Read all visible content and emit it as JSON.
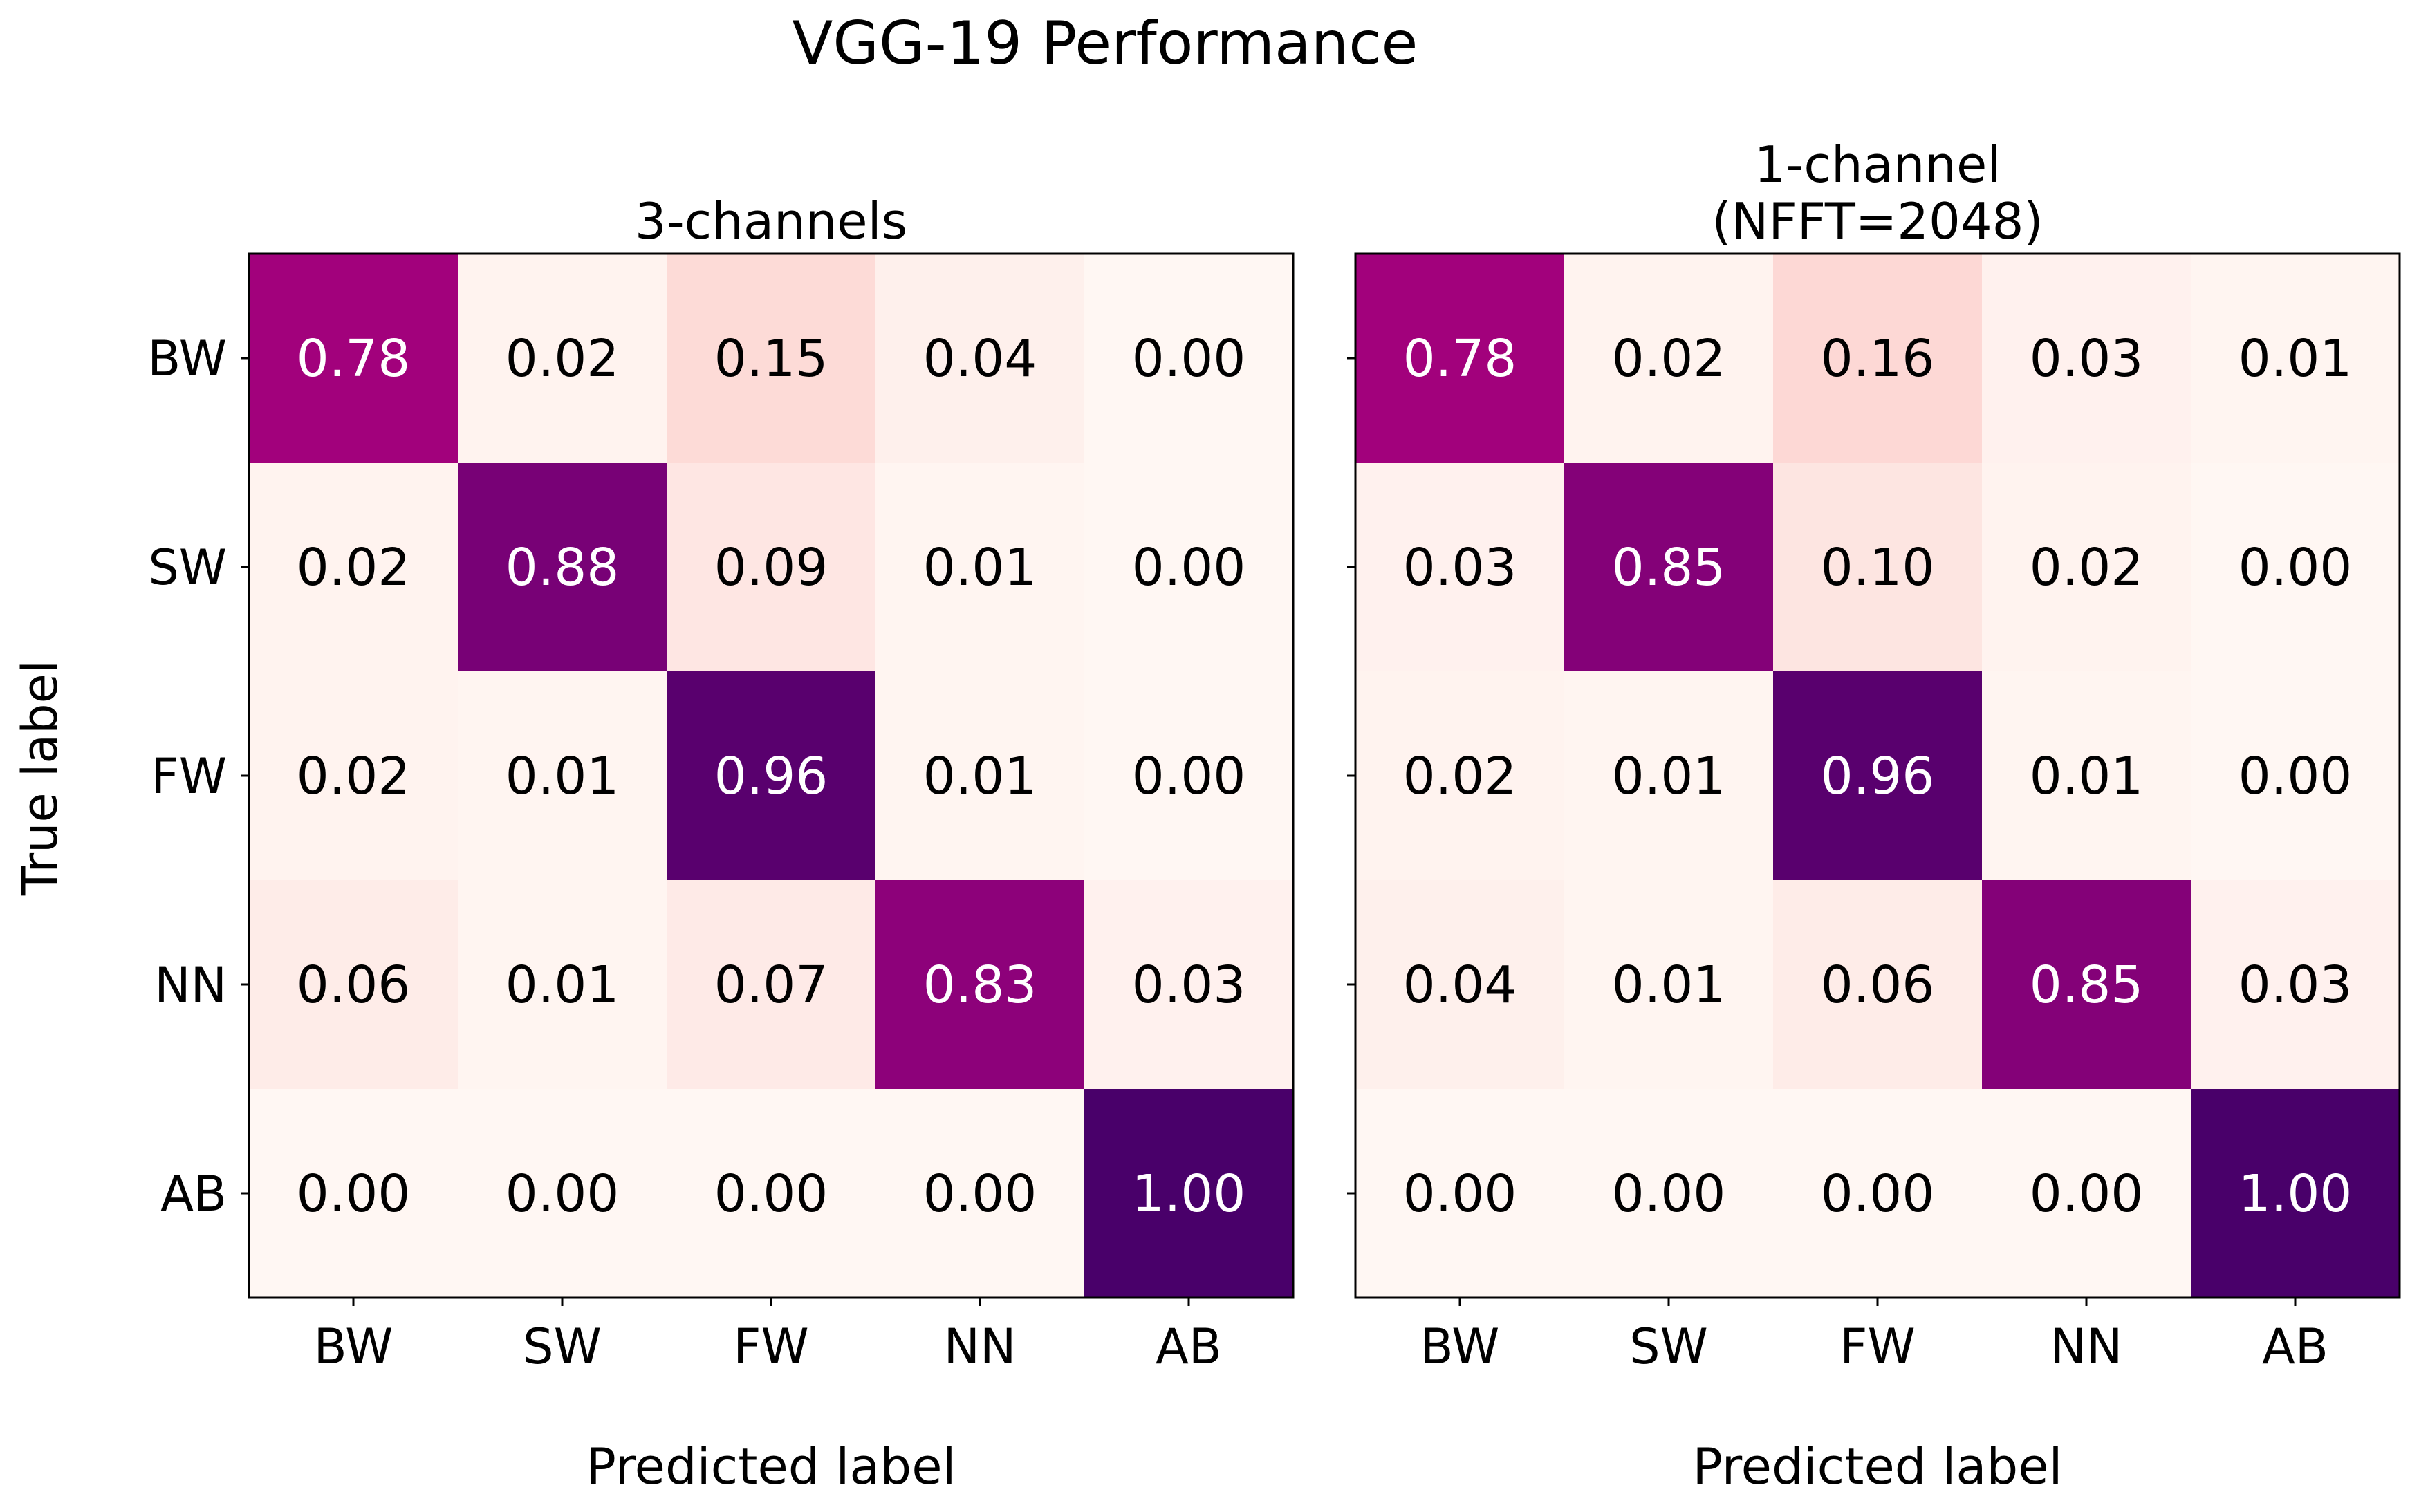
{
  "figure": {
    "title": "VGG-19 Performance",
    "ylabel": "True label"
  },
  "colormap": {
    "name": "RdPu",
    "stops": [
      "#fff7f3",
      "#fde0dd",
      "#fcc5c0",
      "#fa9fb5",
      "#f768a1",
      "#dd3497",
      "#ae017e",
      "#7a0177",
      "#49006a"
    ],
    "text_dark": "#000000",
    "text_light": "#ffffff"
  },
  "chart_data": [
    {
      "type": "heatmap",
      "title": "3-channels",
      "xlabel": "Predicted label",
      "ylabel": "True label",
      "x_categories": [
        "BW",
        "SW",
        "FW",
        "NN",
        "AB"
      ],
      "y_categories": [
        "BW",
        "SW",
        "FW",
        "NN",
        "AB"
      ],
      "value_range": [
        0,
        1
      ],
      "values": [
        [
          0.78,
          0.02,
          0.15,
          0.04,
          0.0
        ],
        [
          0.02,
          0.88,
          0.09,
          0.01,
          0.0
        ],
        [
          0.02,
          0.01,
          0.96,
          0.01,
          0.0
        ],
        [
          0.06,
          0.01,
          0.07,
          0.83,
          0.03
        ],
        [
          0.0,
          0.0,
          0.0,
          0.0,
          1.0
        ]
      ],
      "value_format": "0.00"
    },
    {
      "type": "heatmap",
      "title": "1-channel\n(NFFT=2048)",
      "xlabel": "Predicted label",
      "x_categories": [
        "BW",
        "SW",
        "FW",
        "NN",
        "AB"
      ],
      "y_categories": [
        "BW",
        "SW",
        "FW",
        "NN",
        "AB"
      ],
      "value_range": [
        0,
        1
      ],
      "values": [
        [
          0.78,
          0.02,
          0.16,
          0.03,
          0.01
        ],
        [
          0.03,
          0.85,
          0.1,
          0.02,
          0.0
        ],
        [
          0.02,
          0.01,
          0.96,
          0.01,
          0.0
        ],
        [
          0.04,
          0.01,
          0.06,
          0.85,
          0.03
        ],
        [
          0.0,
          0.0,
          0.0,
          0.0,
          1.0
        ]
      ],
      "value_format": "0.00"
    }
  ]
}
